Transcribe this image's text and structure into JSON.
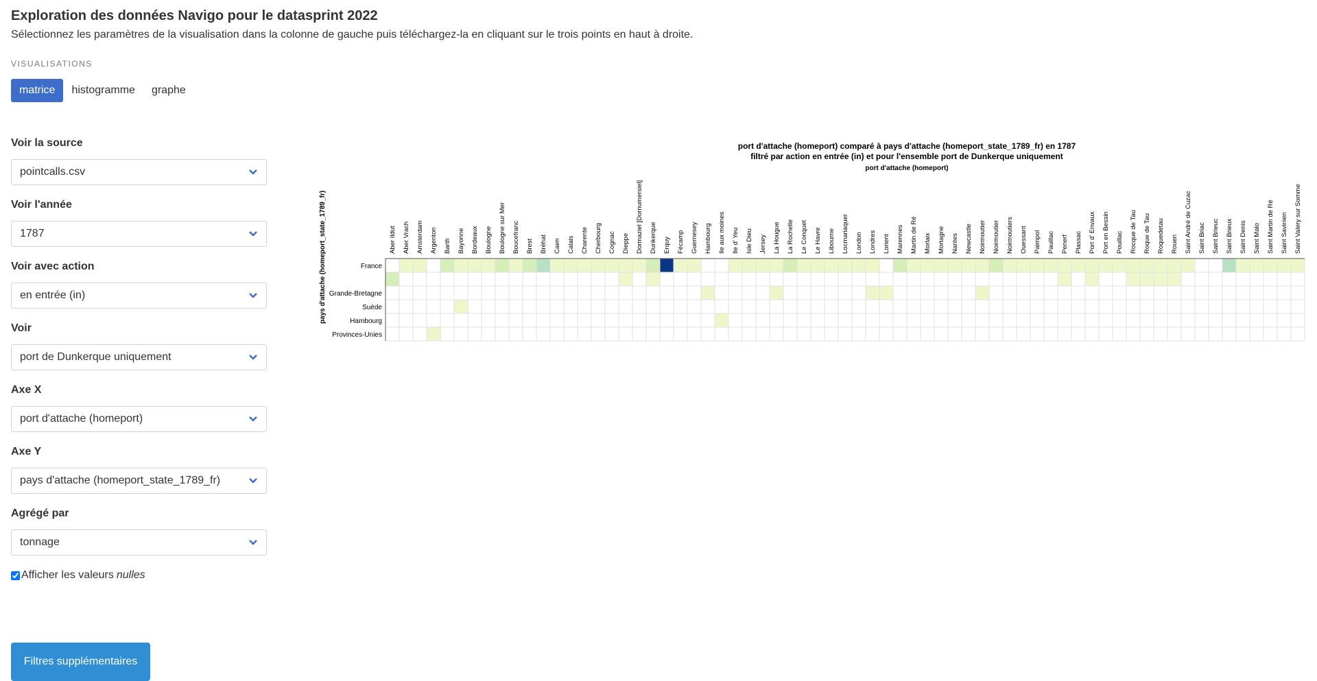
{
  "header": {
    "title": "Exploration des données Navigo pour le datasprint 2022",
    "subtitle": "Sélectionnez les paramètres de la visualisation dans la colonne de gauche puis téléchargez-la en cliquant sur le trois points en haut à droite."
  },
  "visualisations": {
    "label": "VISUALISATIONS",
    "tabs": [
      {
        "label": "matrice",
        "active": true
      },
      {
        "label": "histogramme",
        "active": false
      },
      {
        "label": "graphe",
        "active": false
      }
    ]
  },
  "sidebar": {
    "fields": [
      {
        "label": "Voir la source",
        "value": "pointcalls.csv"
      },
      {
        "label": "Voir l'année",
        "value": "1787"
      },
      {
        "label": "Voir avec action",
        "value": "en entrée (in)"
      },
      {
        "label": "Voir",
        "value": "port de Dunkerque uniquement"
      },
      {
        "label": "Axe X",
        "value": "port d'attache (homeport)"
      },
      {
        "label": "Axe Y",
        "value": "pays d'attache (homeport_state_1789_fr)"
      },
      {
        "label": "Agrégé par",
        "value": "tonnage"
      }
    ],
    "checkbox": {
      "label": "Afficher les valeurs",
      "label_em": "nulles",
      "checked": true
    },
    "filters_button": "Filtres supplémentaires"
  },
  "chart_data": {
    "type": "heatmap",
    "title": "port d'attache (homeport) comparé à pays d'attache (homeport_state_1789_fr) en 1787",
    "subtitle": "filtré par action en entrée (in) et pour l'ensemble port de Dunkerque uniquement",
    "xlabel": "port d'attache (homeport)",
    "ylabel": "pays d'attache (homeport_state_1789_fr)",
    "colors": {
      "low": "#eef7c9",
      "mid": "#d6eeb8",
      "high": "#b7e1c3",
      "max": "#0b3585"
    },
    "columns": [
      "Aber Ildut",
      "Aber Vrach",
      "Amsterdam",
      "Argenton",
      "Barth",
      "Bayonne",
      "Bordeaux",
      "Boulogne",
      "Boulogne sur Mer",
      "Boucefranc",
      "Brest",
      "Bréhat",
      "Caen",
      "Calais",
      "Charente",
      "Cherbourg",
      "Cognac",
      "Dieppe",
      "Dormaziel [Dornumersiel]",
      "Dunkerque",
      "Erquy",
      "Fécamp",
      "Guernesey",
      "Hambourg",
      "Ile aux moines",
      "Ile d' Yeu",
      "Isle Dieu",
      "Jersey",
      "La Hougue",
      "La Rochelle",
      "Le Conquet",
      "Le Havre",
      "Libourne",
      "Locmariaquer",
      "London",
      "Londres",
      "Lorient",
      "Marennes",
      "Martin de Ré",
      "Morlaix",
      "Mortagne",
      "Nantes",
      "Newcastle",
      "Noirmoutier",
      "Noirmoutier",
      "Noirmoutiers",
      "Ouessant",
      "Paimpol",
      "Pauillac",
      "Penerf",
      "Plassac",
      "Port d' Envaux",
      "Port en Bessin",
      "Pouillac",
      "Rocque de Tau",
      "Roque de Tau",
      "Roquedetau",
      "Rouen",
      "Saint André de Cuzac",
      "Saint Briac",
      "Saint Brieuc",
      "Saint Brieux",
      "Saint Denis",
      "Saint Malo",
      "Saint Martin de Ré",
      "Saint Savinien",
      "Saint Valery sur Somme"
    ],
    "rows": [
      "France",
      "",
      "Grande-Bretagne",
      "Suède",
      "Hambourg",
      "Provinces-Unies"
    ],
    "cells": [
      {
        "row": 0,
        "cols": [
          1,
          2,
          5,
          6,
          7,
          9,
          11,
          12,
          13,
          14,
          15,
          16,
          17,
          18,
          20,
          21,
          22,
          25,
          26,
          27,
          28,
          30,
          31,
          32,
          33,
          34,
          35,
          38,
          39,
          40,
          41,
          42,
          43,
          45,
          46,
          47,
          48,
          49,
          50,
          51,
          52,
          53,
          54,
          55,
          56,
          57,
          58,
          62,
          63,
          64,
          65,
          66
        ],
        "level": "low"
      },
      {
        "row": 0,
        "cols": [
          4,
          8,
          10,
          19,
          29,
          37,
          44
        ],
        "level": "mid"
      },
      {
        "row": 0,
        "cols": [
          11,
          61
        ],
        "level": "high"
      },
      {
        "row": 0,
        "cols": [
          20
        ],
        "level": "max"
      },
      {
        "row": 1,
        "cols": [
          0
        ],
        "level": "mid"
      },
      {
        "row": 1,
        "cols": [
          17,
          19,
          49,
          51,
          54,
          55,
          56,
          57
        ],
        "level": "low"
      },
      {
        "row": 2,
        "cols": [
          23,
          28,
          35,
          36,
          43
        ],
        "level": "low"
      },
      {
        "row": 3,
        "cols": [
          5
        ],
        "level": "low"
      },
      {
        "row": 4,
        "cols": [
          24
        ],
        "level": "low"
      },
      {
        "row": 5,
        "cols": [
          3
        ],
        "level": "low"
      }
    ]
  }
}
